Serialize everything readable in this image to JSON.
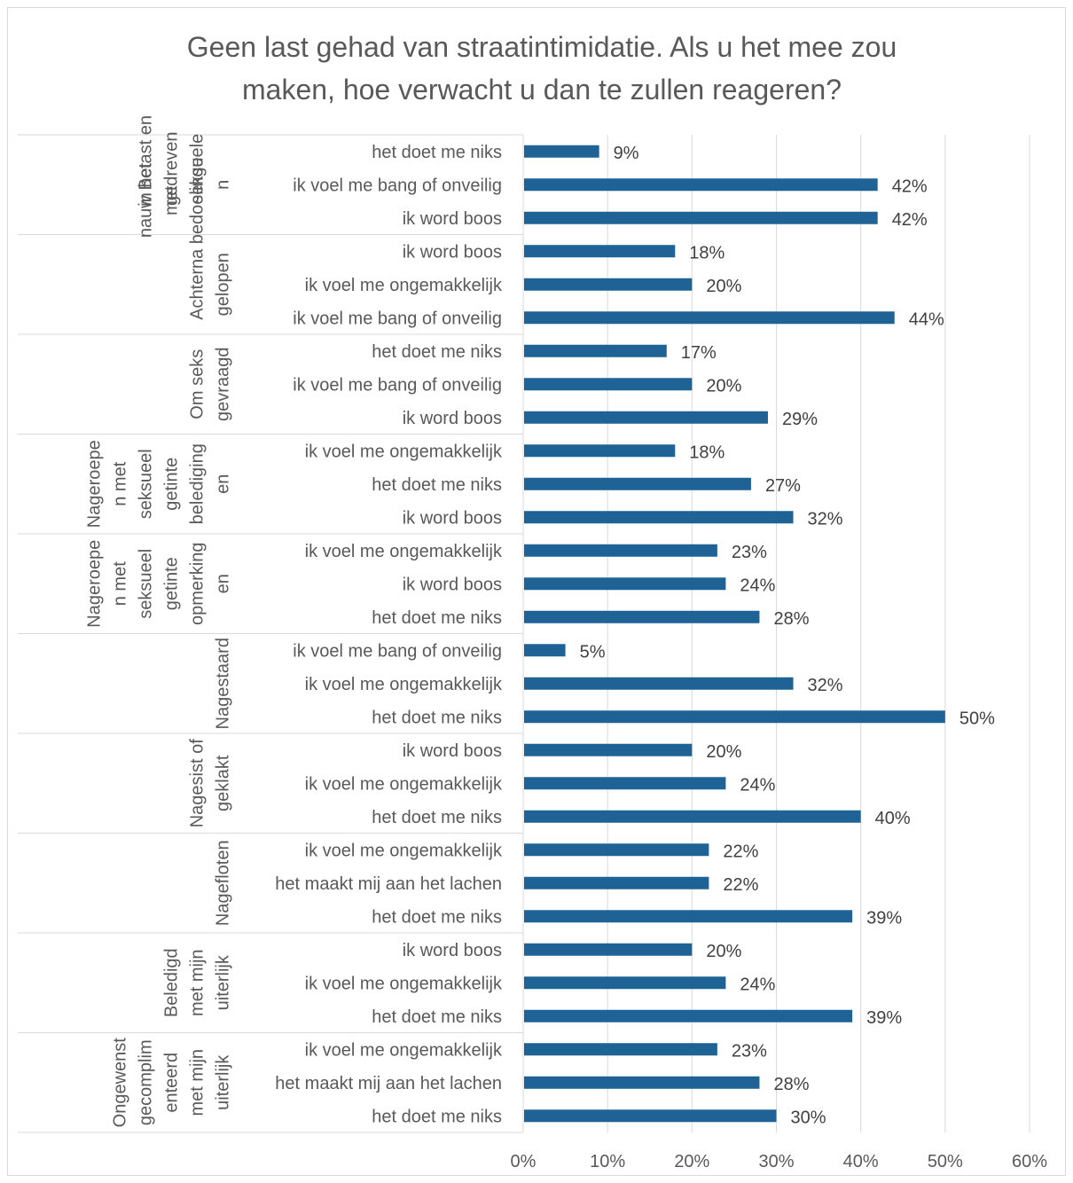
{
  "chart_data": {
    "type": "bar",
    "orientation": "horizontal",
    "title": "Geen last gehad van straatintimidatie. Als u het mee zou maken, hoe verwacht u dan te zullen reageren?",
    "title_lines": [
      "Geen last gehad van straatintimidatie. Als u het mee zou",
      "maken, hoe verwacht u dan te zullen reageren?"
    ],
    "xlim": [
      0,
      60
    ],
    "x_ticks": [
      "0%",
      "10%",
      "20%",
      "30%",
      "40%",
      "50%",
      "60%"
    ],
    "grid": true,
    "bar_color": "#1f6396",
    "groups": [
      {
        "name_lines": [
          "Betast en",
          "in het",
          "nauw",
          "gedreven",
          "met",
          "seksuele",
          "bedoelinge",
          "n"
        ],
        "columns": [
          [
            "Betast en",
            "in het",
            "nauw"
          ],
          [
            "gedreven",
            "met"
          ],
          [
            "seksuele",
            "bedoelinge"
          ],
          [
            "n"
          ]
        ],
        "items": [
          {
            "label": "het doet me niks",
            "value": 9,
            "value_label": "9%"
          },
          {
            "label": "ik voel me bang of onveilig",
            "value": 42,
            "value_label": "42%"
          },
          {
            "label": "ik word boos",
            "value": 42,
            "value_label": "42%"
          }
        ]
      },
      {
        "name_lines": [
          "Achterna",
          "gelopen"
        ],
        "columns": [
          [
            "Achterna"
          ],
          [
            "gelopen"
          ]
        ],
        "items": [
          {
            "label": "ik word boos",
            "value": 18,
            "value_label": "18%"
          },
          {
            "label": "ik voel me ongemakkelijk",
            "value": 20,
            "value_label": "20%"
          },
          {
            "label": "ik voel me bang of onveilig",
            "value": 44,
            "value_label": "44%"
          }
        ]
      },
      {
        "name_lines": [
          "Om seks",
          "gevraagd"
        ],
        "columns": [
          [
            "Om seks"
          ],
          [
            "gevraagd"
          ]
        ],
        "items": [
          {
            "label": "het doet me niks",
            "value": 17,
            "value_label": "17%"
          },
          {
            "label": "ik voel me bang of onveilig",
            "value": 20,
            "value_label": "20%"
          },
          {
            "label": "ik word boos",
            "value": 29,
            "value_label": "29%"
          }
        ]
      },
      {
        "name_lines": [
          "Nageroepe",
          "n met",
          "seksueel",
          "getinte",
          "belediging",
          "en"
        ],
        "columns": [
          [
            "Nageroepe"
          ],
          [
            "n met"
          ],
          [
            "seksueel"
          ],
          [
            "getinte"
          ],
          [
            "belediging"
          ],
          [
            "en"
          ]
        ],
        "items": [
          {
            "label": "ik voel me ongemakkelijk",
            "value": 18,
            "value_label": "18%"
          },
          {
            "label": "het doet me niks",
            "value": 27,
            "value_label": "27%"
          },
          {
            "label": "ik word boos",
            "value": 32,
            "value_label": "32%"
          }
        ]
      },
      {
        "name_lines": [
          "Nageroepe",
          "n met",
          "seksueel",
          "getinte",
          "opmerking",
          "en"
        ],
        "columns": [
          [
            "Nageroepe"
          ],
          [
            "n met"
          ],
          [
            "seksueel"
          ],
          [
            "getinte"
          ],
          [
            "opmerking"
          ],
          [
            "en"
          ]
        ],
        "items": [
          {
            "label": "ik voel me ongemakkelijk",
            "value": 23,
            "value_label": "23%"
          },
          {
            "label": "ik word boos",
            "value": 24,
            "value_label": "24%"
          },
          {
            "label": "het doet me niks",
            "value": 28,
            "value_label": "28%"
          }
        ]
      },
      {
        "name_lines": [
          "Nagestaard"
        ],
        "columns": [
          [
            "Nagestaard"
          ]
        ],
        "items": [
          {
            "label": "ik voel me bang of onveilig",
            "value": 5,
            "value_label": "5%"
          },
          {
            "label": "ik voel me ongemakkelijk",
            "value": 32,
            "value_label": "32%"
          },
          {
            "label": "het doet me niks",
            "value": 50,
            "value_label": "50%"
          }
        ]
      },
      {
        "name_lines": [
          "Nagesist of",
          "geklakt"
        ],
        "columns": [
          [
            "Nagesist of"
          ],
          [
            "geklakt"
          ]
        ],
        "items": [
          {
            "label": "ik word boos",
            "value": 20,
            "value_label": "20%"
          },
          {
            "label": "ik voel me ongemakkelijk",
            "value": 24,
            "value_label": "24%"
          },
          {
            "label": "het doet me niks",
            "value": 40,
            "value_label": "40%"
          }
        ]
      },
      {
        "name_lines": [
          "Nagefloten"
        ],
        "columns": [
          [
            "Nagefloten"
          ]
        ],
        "items": [
          {
            "label": "ik voel me ongemakkelijk",
            "value": 22,
            "value_label": "22%"
          },
          {
            "label": "het maakt mij aan het lachen",
            "value": 22,
            "value_label": "22%"
          },
          {
            "label": "het doet me niks",
            "value": 39,
            "value_label": "39%"
          }
        ]
      },
      {
        "name_lines": [
          "Beledigd",
          "met mijn",
          "uiterlijk"
        ],
        "columns": [
          [
            "Beledigd"
          ],
          [
            "met mijn"
          ],
          [
            "uiterlijk"
          ]
        ],
        "items": [
          {
            "label": "ik word boos",
            "value": 20,
            "value_label": "20%"
          },
          {
            "label": "ik voel me ongemakkelijk",
            "value": 24,
            "value_label": "24%"
          },
          {
            "label": "het doet me niks",
            "value": 39,
            "value_label": "39%"
          }
        ]
      },
      {
        "name_lines": [
          "Ongewenst",
          "gecomplim",
          "enteerd",
          "met mijn",
          "uiterlijk"
        ],
        "columns": [
          [
            "Ongewenst"
          ],
          [
            "gecomplim"
          ],
          [
            "enteerd"
          ],
          [
            "met mijn"
          ],
          [
            "uiterlijk"
          ]
        ],
        "items": [
          {
            "label": "ik voel me ongemakkelijk",
            "value": 23,
            "value_label": "23%"
          },
          {
            "label": "het maakt mij aan het lachen",
            "value": 28,
            "value_label": "28%"
          },
          {
            "label": "het doet me niks",
            "value": 30,
            "value_label": "30%"
          }
        ]
      }
    ]
  }
}
